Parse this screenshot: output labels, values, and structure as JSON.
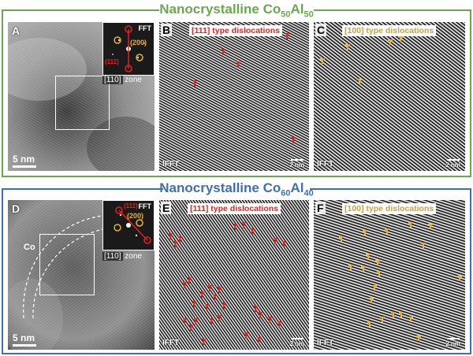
{
  "section1": {
    "title_prefix": "Nanocrystalline Co",
    "sub1": "50",
    "mid": "Al",
    "sub2": "50",
    "color": "#6aa84f"
  },
  "section2": {
    "title_prefix": "Nanocrystalline Co",
    "sub1": "60",
    "mid": "Al",
    "sub2": "40",
    "color": "#3d6fb5"
  },
  "panels": {
    "A": {
      "label": "A",
      "fft": "FFT",
      "zone_prefix": "[110]",
      "zone_suffix": "zone",
      "spot_red": "(111̄)",
      "spot_gold": "(200)",
      "scale": "5 nm"
    },
    "B": {
      "label": "B",
      "title": "[111] type dislocations",
      "ifft": "IFFT",
      "scale": "2 nm"
    },
    "C": {
      "label": "C",
      "title": "[100] type dislocations",
      "ifft": "IFFT",
      "scale": "2 nm"
    },
    "D": {
      "label": "D",
      "fft": "FFT",
      "zone_prefix": "[110]",
      "zone_suffix": "zone",
      "spot_red": "(111̄)",
      "spot_gold": "(200)",
      "scale": "5 nm",
      "grain": "Co"
    },
    "E": {
      "label": "E",
      "title": "[111] type dislocations",
      "ifft": "IFFT",
      "scale": "2 nm"
    },
    "F": {
      "label": "F",
      "title": "[100] type dislocations",
      "ifft": "IFFT",
      "scale": "2 nm"
    }
  },
  "colors": {
    "red": "#e8201c",
    "gold": "#e6b23a"
  }
}
